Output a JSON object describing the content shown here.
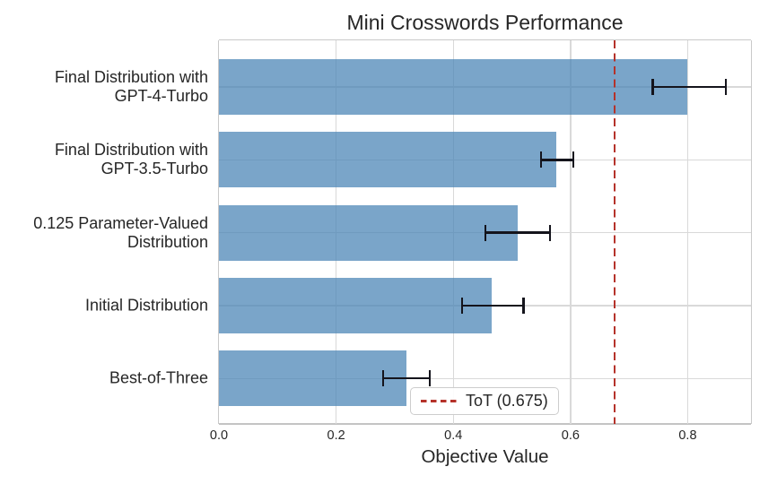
{
  "figure_title": "Mini Crosswords Performance",
  "chart_data": {
    "type": "bar",
    "orientation": "horizontal",
    "title": "Mini Crosswords Performance",
    "xlabel": "Objective Value",
    "ylabel": "",
    "categories": [
      [
        "Final Distribution with",
        "GPT-4-Turbo"
      ],
      [
        "Final Distribution with",
        "GPT-3.5-Turbo"
      ],
      [
        "0.125 Parameter-Valued",
        "Distribution"
      ],
      [
        "Initial Distribution"
      ],
      [
        "Best-of-Three"
      ]
    ],
    "values": [
      0.8,
      0.575,
      0.51,
      0.465,
      0.32
    ],
    "error_low": [
      0.74,
      0.55,
      0.455,
      0.415,
      0.28
    ],
    "error_high": [
      0.865,
      0.605,
      0.565,
      0.52,
      0.36
    ],
    "x_tick_labels": [
      "0.0",
      "0.2",
      "0.4",
      "0.6",
      "0.8"
    ],
    "x_tick_values": [
      0,
      0.2,
      0.4,
      0.6,
      0.8
    ],
    "xlim": [
      0,
      0.908
    ],
    "grid": true,
    "legend": {
      "label": "ToT (0.675)",
      "position": "lower center"
    },
    "reference_line": {
      "value": 0.675,
      "label": "ToT (0.675)",
      "style": "dashed"
    },
    "colors": {
      "bar": "rgba(70,130,180,0.72)",
      "reference": "#b5322a",
      "grid": "#d9d9d9",
      "spine": "#c9c9c9",
      "error_bar": "#14141c",
      "text": "#262626"
    }
  }
}
